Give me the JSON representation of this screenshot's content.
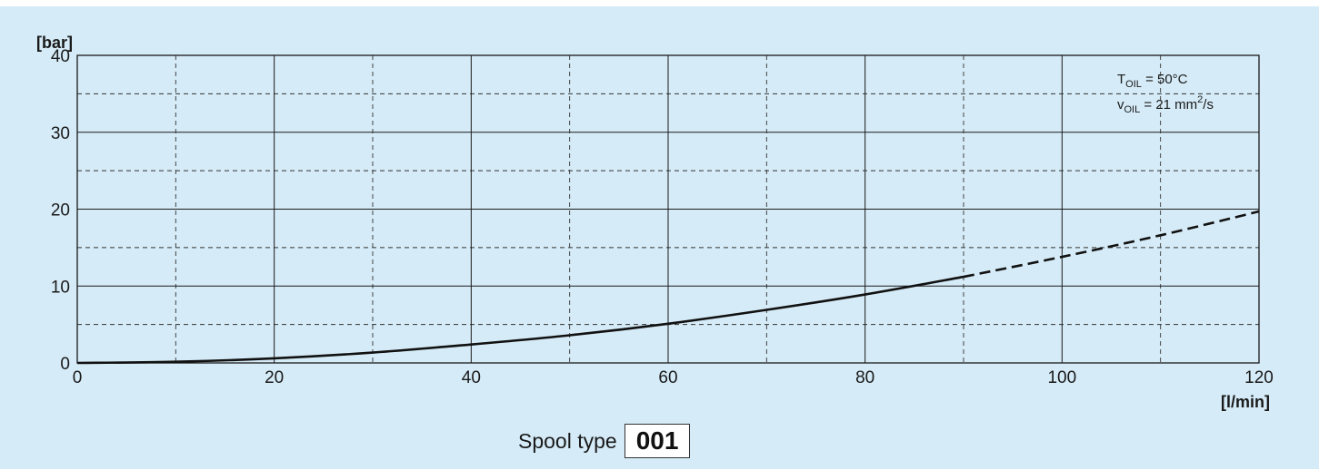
{
  "chart_data": {
    "type": "line",
    "x_unit_label": "[l/min]",
    "y_unit_label": "[bar]",
    "xlim": [
      0,
      120
    ],
    "ylim": [
      0,
      40
    ],
    "x_ticks": [
      0,
      20,
      40,
      60,
      80,
      100,
      120
    ],
    "y_ticks": [
      0,
      10,
      20,
      30,
      40
    ],
    "x_minor_grid": [
      10,
      30,
      50,
      70,
      90,
      110
    ],
    "y_minor_grid": [
      5,
      15,
      25,
      35
    ],
    "grid": true,
    "series": [
      {
        "style": "solid",
        "x": [
          0,
          10,
          20,
          30,
          40,
          50,
          60,
          70,
          80,
          90
        ],
        "y": [
          0,
          0.15,
          0.6,
          1.35,
          2.4,
          3.6,
          5.1,
          6.9,
          8.9,
          11.2
        ]
      },
      {
        "style": "dashed",
        "x": [
          90,
          100,
          110,
          120
        ],
        "y": [
          11.2,
          13.8,
          16.6,
          19.7
        ]
      }
    ],
    "annotation": {
      "line1_main": "T",
      "line1_sub": "OIL",
      "line1_rest": " = 50°C",
      "line2_main": "v",
      "line2_sub": "OIL",
      "line2_mid": " = 21 mm",
      "line2_sup": "2",
      "line2_rest": "/s",
      "position": "top-right"
    }
  },
  "caption": {
    "label": "Spool type",
    "code": "001"
  }
}
